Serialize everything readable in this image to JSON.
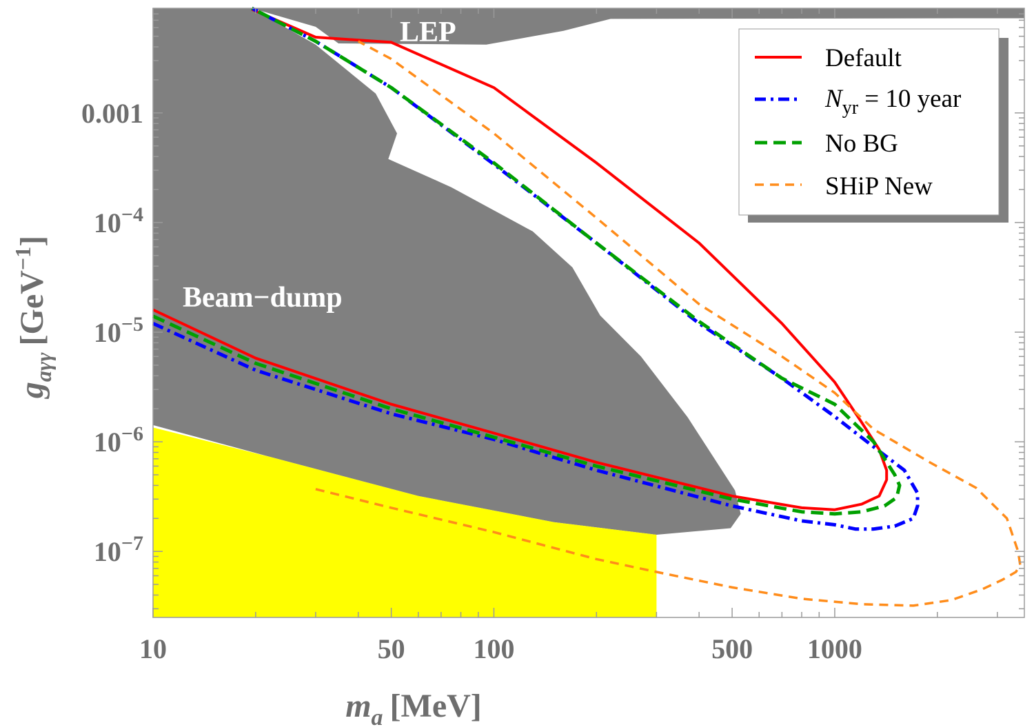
{
  "chart_data": {
    "type": "line",
    "xscale": "log",
    "yscale": "log",
    "xlim": [
      10,
      3600
    ],
    "ylim": [
      2.5e-08,
      0.009
    ],
    "xlabel": {
      "symbol": "m",
      "sub": "a",
      "unit": "[MeV]"
    },
    "ylabel": {
      "symbol": "g",
      "sub": "aγγ",
      "unit_pre": "[GeV",
      "unit_sup": "−1",
      "unit_post": "]"
    },
    "xticks": [
      {
        "value": 10,
        "label": "10"
      },
      {
        "value": 50,
        "label": "50"
      },
      {
        "value": 100,
        "label": "100"
      },
      {
        "value": 500,
        "label": "500"
      },
      {
        "value": 1000,
        "label": "1000"
      }
    ],
    "yticks": [
      {
        "value": 0.001,
        "label": "0.001",
        "base": "",
        "exp": ""
      },
      {
        "value": 0.0001,
        "label": "",
        "base": "10",
        "exp": "−4"
      },
      {
        "value": 1e-05,
        "label": "",
        "base": "10",
        "exp": "−5"
      },
      {
        "value": 1e-06,
        "label": "",
        "base": "10",
        "exp": "−6"
      },
      {
        "value": 1e-07,
        "label": "",
        "base": "10",
        "exp": "−7"
      }
    ],
    "regions": [
      {
        "name": "LEP",
        "label": "LEP",
        "color": "#808080",
        "points": [
          [
            19.5,
            0.009
          ],
          [
            3600,
            0.009
          ],
          [
            3600,
            0.0073
          ],
          [
            2300,
            0.0073
          ],
          [
            220,
            0.0072
          ],
          [
            160,
            0.0056
          ],
          [
            95,
            0.0042
          ],
          [
            35,
            0.0043
          ],
          [
            30,
            0.0061
          ],
          [
            19.5,
            0.009
          ]
        ]
      },
      {
        "name": "Beam-dump",
        "label": "Beam−dump",
        "color": "#808080",
        "points": [
          [
            10,
            0.009
          ],
          [
            19.5,
            0.009
          ],
          [
            30,
            0.0042
          ],
          [
            45,
            0.0015
          ],
          [
            52,
            0.00065
          ],
          [
            49,
            0.00038
          ],
          [
            75,
            0.00021
          ],
          [
            130,
            8.3e-05
          ],
          [
            170,
            3.9e-05
          ],
          [
            205,
            1.42e-05
          ],
          [
            270,
            6e-06
          ],
          [
            370,
            1.68e-06
          ],
          [
            510,
            3.6e-07
          ],
          [
            530,
            2.2e-07
          ],
          [
            495,
            1.63e-07
          ],
          [
            300,
            1.42e-07
          ],
          [
            150,
            1.85e-07
          ],
          [
            60,
            3.2e-07
          ],
          [
            22,
            7.3e-07
          ],
          [
            10,
            1.42e-06
          ],
          [
            10,
            0.009
          ]
        ]
      },
      {
        "name": "yellow-region",
        "label": "",
        "color": "#ffff00",
        "points": [
          [
            10,
            1.35e-06
          ],
          [
            22,
            7.3e-07
          ],
          [
            60,
            3.2e-07
          ],
          [
            150,
            1.85e-07
          ],
          [
            300,
            1.42e-07
          ],
          [
            300,
            2.5e-08
          ],
          [
            10,
            2.5e-08
          ]
        ]
      }
    ],
    "series": [
      {
        "name": "Default",
        "label": "Default",
        "color": "#ff0000",
        "style": "solid",
        "x": [
          10,
          20,
          50,
          100,
          200,
          500,
          800,
          1000,
          1200,
          1350,
          1420,
          1420,
          1350,
          1200,
          1000,
          700,
          400,
          200,
          100,
          50,
          30,
          19.5
        ],
        "y": [
          1.6e-05,
          5.8e-06,
          2.2e-06,
          1.2e-06,
          6.5e-07,
          3.2e-07,
          2.5e-07,
          2.4e-07,
          2.7e-07,
          3.2e-07,
          4.5e-07,
          5.5e-07,
          8.5e-07,
          1.5e-06,
          3.5e-06,
          1.2e-05,
          6.5e-05,
          0.00035,
          0.0017,
          0.0044,
          0.0049,
          0.0088
        ]
      },
      {
        "name": "Nyr",
        "label_italic": "N",
        "label_sub": "yr",
        "label_rest": " = 10 year",
        "color": "#0000ff",
        "style": "dashdot",
        "x": [
          10,
          20,
          50,
          100,
          200,
          500,
          800,
          1000,
          1150,
          1300,
          1500,
          1700,
          1750,
          1750,
          1600,
          1300,
          1000,
          700,
          400,
          200,
          100,
          50,
          30,
          19.5
        ],
        "y": [
          1.2e-05,
          4.5e-06,
          1.8e-06,
          1.05e-06,
          5.5e-07,
          2.6e-07,
          1.9e-07,
          1.75e-07,
          1.6e-07,
          1.6e-07,
          1.7e-07,
          2e-07,
          2.6e-07,
          3.4e-07,
          5.5e-07,
          9e-07,
          1.7e-06,
          3.8e-06,
          1.2e-05,
          6.5e-05,
          0.00034,
          0.0017,
          0.0045,
          0.009
        ]
      },
      {
        "name": "No BG",
        "label": "No BG",
        "color": "#00a000",
        "style": "dashed",
        "x": [
          10,
          20,
          50,
          100,
          200,
          500,
          800,
          1000,
          1200,
          1400,
          1520,
          1550,
          1500,
          1300,
          1000,
          700,
          400,
          200,
          100,
          50,
          30,
          19.5
        ],
        "y": [
          1.4e-05,
          5.2e-06,
          2e-06,
          1.1e-06,
          6e-07,
          3e-07,
          2.3e-07,
          2.2e-07,
          2.3e-07,
          2.6e-07,
          3.1e-07,
          4e-07,
          5e-07,
          1e-06,
          2.2e-06,
          3.8e-06,
          1.25e-05,
          6.5e-05,
          0.00035,
          0.0017,
          0.0045,
          0.009
        ]
      },
      {
        "name": "SHiP New",
        "label": "SHiP New",
        "color": "#ff8c1a",
        "style": "dashed-thin",
        "x": [
          30,
          50,
          100,
          200,
          300,
          500,
          800,
          1200,
          1700,
          2200,
          2700,
          3100,
          3400,
          3500,
          3450,
          3200,
          2600,
          1900,
          1300,
          1000,
          700,
          400,
          200,
          100,
          50,
          40
        ],
        "y": [
          3.7e-07,
          2.5e-07,
          1.5e-07,
          8.5e-08,
          6.5e-08,
          4.7e-08,
          3.7e-08,
          3.3e-08,
          3.2e-08,
          3.6e-08,
          4.5e-08,
          5.5e-08,
          6.5e-08,
          7.5e-08,
          1e-07,
          2e-07,
          3.8e-07,
          6.5e-07,
          1.3e-06,
          2.8e-06,
          6e-06,
          1.8e-05,
          0.00011,
          0.00065,
          0.0031,
          0.0045
        ]
      }
    ],
    "legend_position": "top-right"
  }
}
